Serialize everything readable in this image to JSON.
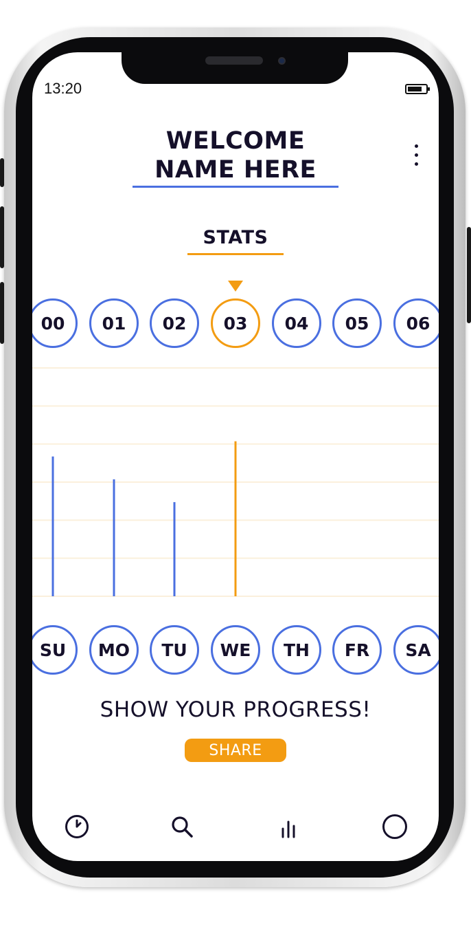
{
  "status_bar": {
    "time": "13:20"
  },
  "header": {
    "welcome_line1": "WELCOME",
    "welcome_line2": "NAME HERE"
  },
  "stats": {
    "title": "STATS",
    "selected_hour": "03",
    "selected_day": "WE"
  },
  "hours": [
    "00",
    "01",
    "02",
    "03",
    "04",
    "05",
    "06"
  ],
  "days": [
    "SU",
    "MO",
    "TU",
    "WE",
    "TH",
    "FR",
    "SA"
  ],
  "chart_data": {
    "type": "bar",
    "categories": [
      "SU",
      "MO",
      "TU",
      "WE",
      "TH",
      "FR",
      "SA"
    ],
    "values": [
      202,
      169,
      136,
      224,
      0,
      0,
      0
    ],
    "ylim": [
      0,
      330
    ],
    "grid": true,
    "colors": {
      "default": "#4a6fe0",
      "highlight": "#f39c12"
    },
    "highlight_index": 3
  },
  "footer": {
    "prompt": "SHOW YOUR PROGRESS!",
    "share_label": "SHARE"
  },
  "nav": [
    {
      "icon": "clock-icon"
    },
    {
      "icon": "search-icon"
    },
    {
      "icon": "stats-bars-icon"
    },
    {
      "icon": "profile-circle-icon"
    }
  ],
  "colors": {
    "primary": "#4a6fe0",
    "accent": "#f39c12",
    "text": "#15102a"
  }
}
